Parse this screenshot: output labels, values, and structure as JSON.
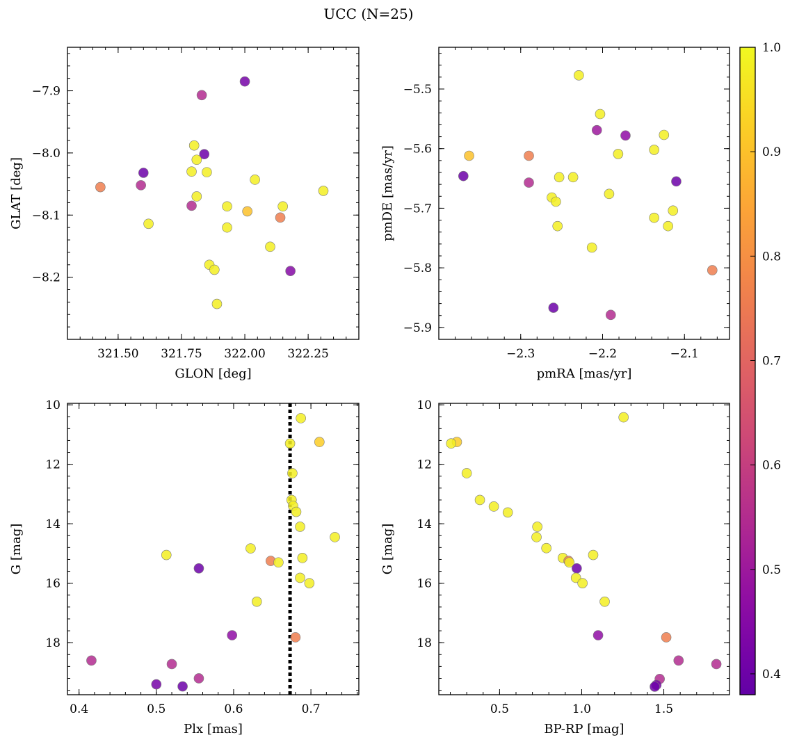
{
  "figure": {
    "title": "UCC (N=25)"
  },
  "colorbar": {
    "min": 0.38,
    "max": 1.0,
    "ticks": [
      0.4,
      0.5,
      0.6,
      0.7,
      0.8,
      0.9,
      1.0
    ],
    "colormap": "plasma"
  },
  "chart_data": [
    {
      "type": "scatter",
      "xlabel": "GLON [deg]",
      "ylabel": "GLAT [deg]",
      "xlim": [
        321.3,
        322.45
      ],
      "ylim": [
        -8.3,
        -7.83
      ],
      "xticks": [
        321.5,
        321.75,
        322.0,
        322.25
      ],
      "yticks": [
        -7.9,
        -8.0,
        -8.1,
        -8.2
      ],
      "points": [
        {
          "x": 322.0,
          "y": -7.885,
          "c": 0.42
        },
        {
          "x": 321.83,
          "y": -7.907,
          "c": 0.55
        },
        {
          "x": 321.8,
          "y": -7.988,
          "c": 0.98
        },
        {
          "x": 321.84,
          "y": -8.002,
          "c": 0.4
        },
        {
          "x": 321.81,
          "y": -8.011,
          "c": 0.98
        },
        {
          "x": 321.79,
          "y": -8.03,
          "c": 0.98
        },
        {
          "x": 321.85,
          "y": -8.031,
          "c": 0.98
        },
        {
          "x": 321.6,
          "y": -8.032,
          "c": 0.4
        },
        {
          "x": 322.04,
          "y": -8.043,
          "c": 0.98
        },
        {
          "x": 321.43,
          "y": -8.055,
          "c": 0.76
        },
        {
          "x": 321.59,
          "y": -8.052,
          "c": 0.55
        },
        {
          "x": 322.31,
          "y": -8.061,
          "c": 0.98
        },
        {
          "x": 321.81,
          "y": -8.07,
          "c": 0.98
        },
        {
          "x": 321.79,
          "y": -8.085,
          "c": 0.55
        },
        {
          "x": 322.15,
          "y": -8.086,
          "c": 0.98
        },
        {
          "x": 321.93,
          "y": -8.086,
          "c": 0.98
        },
        {
          "x": 322.01,
          "y": -8.094,
          "c": 0.9
        },
        {
          "x": 322.14,
          "y": -8.104,
          "c": 0.76
        },
        {
          "x": 321.62,
          "y": -8.114,
          "c": 0.98
        },
        {
          "x": 321.93,
          "y": -8.12,
          "c": 0.98
        },
        {
          "x": 322.1,
          "y": -8.151,
          "c": 0.98
        },
        {
          "x": 321.86,
          "y": -8.18,
          "c": 0.98
        },
        {
          "x": 321.88,
          "y": -8.188,
          "c": 0.98
        },
        {
          "x": 322.18,
          "y": -8.19,
          "c": 0.45
        },
        {
          "x": 321.89,
          "y": -8.243,
          "c": 0.98
        }
      ]
    },
    {
      "type": "scatter",
      "xlabel": "pmRA [mas/yr]",
      "ylabel": "pmDE [mas/yr]",
      "xlim": [
        -2.4,
        -2.045
      ],
      "ylim": [
        -5.92,
        -5.43
      ],
      "xticks": [
        -2.3,
        -2.2,
        -2.1
      ],
      "yticks": [
        -5.5,
        -5.6,
        -5.7,
        -5.8,
        -5.9
      ],
      "points": [
        {
          "x": -2.229,
          "y": -5.477,
          "c": 0.98
        },
        {
          "x": -2.203,
          "y": -5.542,
          "c": 0.98
        },
        {
          "x": -2.207,
          "y": -5.569,
          "c": 0.5
        },
        {
          "x": -2.172,
          "y": -5.578,
          "c": 0.47
        },
        {
          "x": -2.125,
          "y": -5.577,
          "c": 0.98
        },
        {
          "x": -2.137,
          "y": -5.602,
          "c": 0.98
        },
        {
          "x": -2.181,
          "y": -5.609,
          "c": 0.98
        },
        {
          "x": -2.363,
          "y": -5.612,
          "c": 0.9
        },
        {
          "x": -2.29,
          "y": -5.612,
          "c": 0.76
        },
        {
          "x": -2.37,
          "y": -5.646,
          "c": 0.4
        },
        {
          "x": -2.253,
          "y": -5.648,
          "c": 0.98
        },
        {
          "x": -2.236,
          "y": -5.648,
          "c": 0.98
        },
        {
          "x": -2.11,
          "y": -5.655,
          "c": 0.4
        },
        {
          "x": -2.29,
          "y": -5.657,
          "c": 0.55
        },
        {
          "x": -2.192,
          "y": -5.676,
          "c": 0.98
        },
        {
          "x": -2.262,
          "y": -5.682,
          "c": 0.98
        },
        {
          "x": -2.257,
          "y": -5.689,
          "c": 0.98
        },
        {
          "x": -2.114,
          "y": -5.704,
          "c": 0.98
        },
        {
          "x": -2.137,
          "y": -5.716,
          "c": 0.98
        },
        {
          "x": -2.12,
          "y": -5.73,
          "c": 0.98
        },
        {
          "x": -2.255,
          "y": -5.73,
          "c": 0.98
        },
        {
          "x": -2.213,
          "y": -5.766,
          "c": 0.98
        },
        {
          "x": -2.066,
          "y": -5.804,
          "c": 0.76
        },
        {
          "x": -2.26,
          "y": -5.867,
          "c": 0.4
        },
        {
          "x": -2.19,
          "y": -5.879,
          "c": 0.55
        }
      ]
    },
    {
      "type": "scatter",
      "xlabel": "Plx [mas]",
      "ylabel": "G [mag]",
      "xlim": [
        0.385,
        0.762
      ],
      "ylim": [
        19.75,
        9.95
      ],
      "xticks": [
        0.4,
        0.5,
        0.6,
        0.7
      ],
      "yticks": [
        10,
        12,
        14,
        16,
        18
      ],
      "vline": 0.673,
      "points": [
        {
          "x": 0.687,
          "y": 10.45,
          "c": 0.98
        },
        {
          "x": 0.711,
          "y": 11.25,
          "c": 0.92
        },
        {
          "x": 0.673,
          "y": 11.3,
          "c": 0.98
        },
        {
          "x": 0.676,
          "y": 12.3,
          "c": 0.98
        },
        {
          "x": 0.675,
          "y": 13.2,
          "c": 0.98
        },
        {
          "x": 0.677,
          "y": 13.4,
          "c": 0.98
        },
        {
          "x": 0.681,
          "y": 13.6,
          "c": 0.98
        },
        {
          "x": 0.686,
          "y": 14.1,
          "c": 0.98
        },
        {
          "x": 0.731,
          "y": 14.45,
          "c": 0.98
        },
        {
          "x": 0.622,
          "y": 14.83,
          "c": 0.98
        },
        {
          "x": 0.513,
          "y": 15.05,
          "c": 0.98
        },
        {
          "x": 0.689,
          "y": 15.15,
          "c": 0.98
        },
        {
          "x": 0.648,
          "y": 15.25,
          "c": 0.76
        },
        {
          "x": 0.658,
          "y": 15.3,
          "c": 0.98
        },
        {
          "x": 0.555,
          "y": 15.5,
          "c": 0.4
        },
        {
          "x": 0.686,
          "y": 15.82,
          "c": 0.98
        },
        {
          "x": 0.698,
          "y": 16.0,
          "c": 0.98
        },
        {
          "x": 0.63,
          "y": 16.62,
          "c": 0.98
        },
        {
          "x": 0.598,
          "y": 17.75,
          "c": 0.47
        },
        {
          "x": 0.68,
          "y": 17.82,
          "c": 0.76
        },
        {
          "x": 0.416,
          "y": 18.6,
          "c": 0.55
        },
        {
          "x": 0.52,
          "y": 18.72,
          "c": 0.55
        },
        {
          "x": 0.555,
          "y": 19.2,
          "c": 0.55
        },
        {
          "x": 0.5,
          "y": 19.4,
          "c": 0.42
        },
        {
          "x": 0.534,
          "y": 19.47,
          "c": 0.4
        }
      ]
    },
    {
      "type": "scatter",
      "xlabel": "BP-RP [mag]",
      "ylabel": "G [mag]",
      "xlim": [
        0.13,
        1.9
      ],
      "ylim": [
        19.75,
        9.95
      ],
      "xticks": [
        0.5,
        1.0,
        1.5
      ],
      "yticks": [
        10,
        12,
        14,
        16,
        18
      ],
      "points": [
        {
          "x": 1.255,
          "y": 10.42,
          "c": 0.98
        },
        {
          "x": 0.24,
          "y": 11.25,
          "c": 0.92
        },
        {
          "x": 0.205,
          "y": 11.3,
          "c": 0.98
        },
        {
          "x": 0.3,
          "y": 12.3,
          "c": 0.98
        },
        {
          "x": 0.38,
          "y": 13.2,
          "c": 0.98
        },
        {
          "x": 0.465,
          "y": 13.42,
          "c": 0.98
        },
        {
          "x": 0.55,
          "y": 13.62,
          "c": 0.98
        },
        {
          "x": 0.73,
          "y": 14.1,
          "c": 0.98
        },
        {
          "x": 0.725,
          "y": 14.45,
          "c": 0.98
        },
        {
          "x": 0.785,
          "y": 14.82,
          "c": 0.98
        },
        {
          "x": 1.07,
          "y": 15.05,
          "c": 0.98
        },
        {
          "x": 0.885,
          "y": 15.15,
          "c": 0.98
        },
        {
          "x": 0.92,
          "y": 15.25,
          "c": 0.76
        },
        {
          "x": 0.925,
          "y": 15.3,
          "c": 0.98
        },
        {
          "x": 0.97,
          "y": 15.5,
          "c": 0.4
        },
        {
          "x": 0.965,
          "y": 15.82,
          "c": 0.98
        },
        {
          "x": 1.005,
          "y": 16.0,
          "c": 0.98
        },
        {
          "x": 1.14,
          "y": 16.62,
          "c": 0.98
        },
        {
          "x": 1.1,
          "y": 17.75,
          "c": 0.47
        },
        {
          "x": 1.515,
          "y": 17.82,
          "c": 0.76
        },
        {
          "x": 1.59,
          "y": 18.6,
          "c": 0.55
        },
        {
          "x": 1.82,
          "y": 18.72,
          "c": 0.55
        },
        {
          "x": 1.475,
          "y": 19.22,
          "c": 0.55
        },
        {
          "x": 1.455,
          "y": 19.42,
          "c": 0.42
        },
        {
          "x": 1.445,
          "y": 19.48,
          "c": 0.4
        }
      ]
    }
  ]
}
